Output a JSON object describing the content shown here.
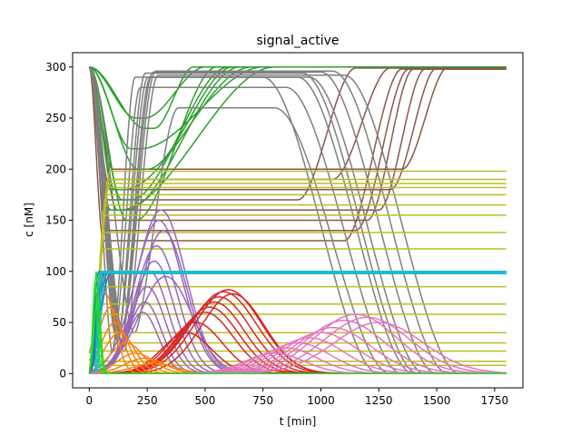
{
  "chart_data": {
    "type": "line",
    "title": "signal_active",
    "xlabel": "t [min]",
    "ylabel": "c [nM]",
    "xlim": [
      -72,
      1872
    ],
    "ylim": [
      -14,
      314
    ],
    "xticks": [
      0,
      250,
      500,
      750,
      1000,
      1250,
      1500,
      1750
    ],
    "yticks": [
      0,
      50,
      100,
      150,
      200,
      250,
      300
    ],
    "grid": false,
    "legend": "none",
    "colors": {
      "brown": "#8c564b",
      "green": "#2ca02c",
      "gray": "#7f7f7f",
      "olive": "#bcbd22",
      "purple": "#9467bd",
      "red": "#d62728",
      "orange": "#ff7f0e",
      "blue": "#1f77b4",
      "cyan": "#17becf",
      "pink": "#e377c2",
      "lime": "#22dd22"
    },
    "groups": [
      {
        "color": "brown",
        "kind": "dip_back",
        "params": [
          [
            300,
            80,
            160,
            1250,
            1450,
            298
          ],
          [
            300,
            70,
            150,
            1200,
            1400,
            298
          ],
          [
            300,
            90,
            180,
            1300,
            1500,
            299
          ],
          [
            300,
            60,
            130,
            1100,
            1350,
            298
          ],
          [
            300,
            100,
            200,
            1350,
            1550,
            300
          ],
          [
            300,
            75,
            170,
            900,
            1150,
            299
          ],
          [
            300,
            85,
            140,
            1150,
            1380,
            298
          ],
          [
            300,
            65,
            190,
            1050,
            1300,
            299
          ]
        ]
      },
      {
        "color": "green",
        "kind": "bump",
        "params": [
          [
            300,
            120,
            160,
            650,
            700,
            300
          ],
          [
            300,
            140,
            170,
            600,
            650,
            300
          ],
          [
            300,
            110,
            180,
            700,
            760,
            300
          ],
          [
            300,
            200,
            250,
            500,
            560,
            300
          ],
          [
            300,
            160,
            150,
            550,
            620,
            300
          ],
          [
            300,
            240,
            240,
            450,
            520,
            300
          ],
          [
            300,
            180,
            220,
            750,
            800,
            300
          ],
          [
            300,
            90,
            160,
            800,
            850,
            300
          ],
          [
            300,
            210,
            200,
            620,
            690,
            300
          ]
        ]
      },
      {
        "color": "gray",
        "kind": "hump",
        "params": [
          [
            300,
            230,
            290,
            1400
          ],
          [
            300,
            240,
            290,
            1450
          ],
          [
            300,
            250,
            295,
            1500
          ],
          [
            300,
            200,
            280,
            1350
          ],
          [
            300,
            260,
            296,
            1550
          ],
          [
            300,
            350,
            260,
            1300
          ],
          [
            300,
            180,
            290,
            1250
          ],
          [
            300,
            270,
            292,
            1600
          ],
          [
            300,
            220,
            294,
            1420
          ]
        ]
      },
      {
        "color": "olive",
        "kind": "plateau",
        "params": [
          [
            198,
            90
          ],
          [
            190,
            85
          ],
          [
            186,
            88
          ],
          [
            182,
            80
          ],
          [
            175,
            75
          ],
          [
            165,
            72
          ],
          [
            155,
            70
          ],
          [
            138,
            65
          ],
          [
            122,
            60
          ],
          [
            100,
            55
          ],
          [
            85,
            50
          ],
          [
            68,
            45
          ],
          [
            58,
            40
          ],
          [
            40,
            35
          ],
          [
            30,
            30
          ],
          [
            22,
            25
          ],
          [
            12,
            20
          ],
          [
            8,
            15
          ],
          [
            0,
            10
          ]
        ]
      },
      {
        "color": "purple",
        "kind": "wave",
        "params": [
          [
            160,
            310,
            150
          ],
          [
            150,
            300,
            145
          ],
          [
            140,
            320,
            140
          ],
          [
            125,
            290,
            130
          ],
          [
            110,
            280,
            120
          ],
          [
            100,
            260,
            115
          ],
          [
            85,
            250,
            110
          ],
          [
            70,
            240,
            100
          ],
          [
            60,
            230,
            95
          ],
          [
            95,
            330,
            160
          ]
        ]
      },
      {
        "color": "red",
        "kind": "wave",
        "params": [
          [
            82,
            600,
            200
          ],
          [
            80,
            580,
            200
          ],
          [
            75,
            560,
            190
          ],
          [
            70,
            540,
            180
          ],
          [
            60,
            500,
            170
          ],
          [
            50,
            460,
            160
          ],
          [
            40,
            420,
            150
          ],
          [
            78,
            620,
            190
          ],
          [
            65,
            520,
            175
          ]
        ]
      },
      {
        "color": "orange",
        "kind": "wave",
        "params": [
          [
            78,
            70,
            60
          ],
          [
            65,
            90,
            70
          ],
          [
            50,
            110,
            80
          ],
          [
            40,
            130,
            90
          ],
          [
            30,
            160,
            100
          ],
          [
            20,
            200,
            110
          ],
          [
            15,
            240,
            120
          ],
          [
            10,
            280,
            130
          ]
        ]
      },
      {
        "color": "blue",
        "kind": "rise",
        "params": [
          [
            100,
            40
          ],
          [
            99,
            50
          ],
          [
            98,
            60
          ],
          [
            100,
            70
          ],
          [
            99,
            80
          ],
          [
            98,
            90
          ]
        ]
      },
      {
        "color": "cyan",
        "kind": "step",
        "params": [
          [
            100,
            45
          ],
          [
            99,
            55
          ],
          [
            98,
            65
          ]
        ]
      },
      {
        "color": "pink",
        "kind": "wave",
        "params": [
          [
            58,
            1150,
            250
          ],
          [
            55,
            1200,
            260
          ],
          [
            52,
            1100,
            240
          ],
          [
            50,
            1250,
            270
          ],
          [
            45,
            1050,
            230
          ],
          [
            40,
            1000,
            220
          ],
          [
            35,
            950,
            210
          ],
          [
            30,
            900,
            200
          ],
          [
            25,
            850,
            190
          ],
          [
            20,
            800,
            180
          ]
        ]
      },
      {
        "color": "lime",
        "kind": "spike",
        "params": [
          [
            100,
            30
          ],
          [
            90,
            25
          ],
          [
            75,
            35
          ]
        ]
      }
    ]
  }
}
